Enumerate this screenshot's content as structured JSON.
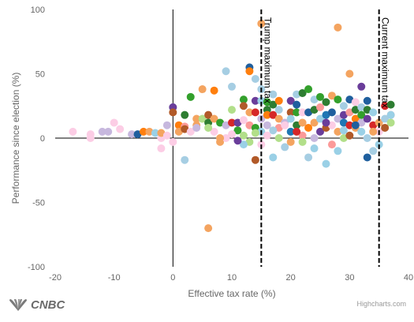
{
  "branding": {
    "logo_text": "CNBC",
    "credits": "Highcharts.com"
  },
  "colors": [
    "#9ad0e6",
    "#f4a460",
    "#2e7d32",
    "#6a3d9a",
    "#1f5f9e",
    "#ff7f0e",
    "#b15928",
    "#c7b8de",
    "#b2df8a",
    "#fb9a99",
    "#33a02c",
    "#1f77b4",
    "#d62728",
    "#fccde5",
    "#a6cee3",
    "#8b4513"
  ],
  "chart_data": {
    "type": "scatter",
    "title": "",
    "xlabel": "Effective tax rate (%)",
    "ylabel": "Performance since election (%)",
    "xlim": [
      -20,
      40
    ],
    "ylim": [
      -100,
      100
    ],
    "xticks": [
      -20,
      -10,
      0,
      10,
      20,
      30,
      40
    ],
    "yticks": [
      -100,
      -50,
      0,
      50,
      100
    ],
    "grid": false,
    "annotations": [
      {
        "label": "Trump maximum tax",
        "x": 15
      },
      {
        "label": "Current maximum tax",
        "x": 35
      }
    ],
    "points": [
      [
        -17,
        5,
        13
      ],
      [
        -14,
        0,
        13
      ],
      [
        -14,
        3,
        13
      ],
      [
        -12,
        5,
        7
      ],
      [
        -11,
        5,
        7
      ],
      [
        -10,
        12,
        13
      ],
      [
        -9,
        7,
        13
      ],
      [
        -7,
        3,
        7
      ],
      [
        -6,
        3,
        4
      ],
      [
        -5,
        5,
        5
      ],
      [
        -4,
        5,
        1
      ],
      [
        -3,
        4,
        0
      ],
      [
        -2,
        -8,
        13
      ],
      [
        -2,
        0,
        13
      ],
      [
        -2,
        4,
        1
      ],
      [
        -1,
        10,
        7
      ],
      [
        -1,
        2,
        13
      ],
      [
        0,
        24,
        0
      ],
      [
        0,
        24,
        3
      ],
      [
        0,
        20,
        6
      ],
      [
        0,
        -3,
        13
      ],
      [
        1,
        10,
        5
      ],
      [
        1,
        5,
        1
      ],
      [
        2,
        -17,
        14
      ],
      [
        2,
        18,
        2
      ],
      [
        2,
        9,
        9
      ],
      [
        2,
        7,
        6
      ],
      [
        3,
        32,
        10
      ],
      [
        3,
        5,
        13
      ],
      [
        4,
        10,
        1
      ],
      [
        4,
        15,
        1
      ],
      [
        4,
        8,
        7
      ],
      [
        5,
        38,
        1
      ],
      [
        5,
        15,
        8
      ],
      [
        6,
        -70,
        1
      ],
      [
        6,
        18,
        6
      ],
      [
        6,
        12,
        2
      ],
      [
        7,
        37,
        5
      ],
      [
        7,
        15,
        1
      ],
      [
        7,
        5,
        13
      ],
      [
        8,
        12,
        10
      ],
      [
        8,
        -3,
        1
      ],
      [
        9,
        52,
        14
      ],
      [
        9,
        10,
        7
      ],
      [
        9,
        0,
        13
      ],
      [
        10,
        40,
        14
      ],
      [
        10,
        22,
        8
      ],
      [
        10,
        12,
        12
      ],
      [
        11,
        12,
        3
      ],
      [
        11,
        6,
        10
      ],
      [
        12,
        30,
        10
      ],
      [
        12,
        14,
        13
      ],
      [
        12,
        2,
        8
      ],
      [
        13,
        55,
        4
      ],
      [
        13,
        52,
        5
      ],
      [
        13,
        20,
        1
      ],
      [
        13,
        10,
        9
      ],
      [
        13,
        -3,
        8
      ],
      [
        14,
        -17,
        6
      ],
      [
        14,
        46,
        14
      ],
      [
        14,
        29,
        3
      ],
      [
        14,
        20,
        12
      ],
      [
        14,
        8,
        10
      ],
      [
        15,
        89,
        1
      ],
      [
        15,
        38,
        14
      ],
      [
        15,
        29,
        0
      ],
      [
        15,
        15,
        7
      ],
      [
        15,
        5,
        0
      ],
      [
        16,
        28,
        10
      ],
      [
        16,
        22,
        2
      ],
      [
        16,
        18,
        5
      ],
      [
        16,
        10,
        7
      ],
      [
        16,
        2,
        13
      ],
      [
        17,
        34,
        14
      ],
      [
        17,
        26,
        2
      ],
      [
        17,
        18,
        12
      ],
      [
        17,
        -15,
        0
      ],
      [
        18,
        29,
        5
      ],
      [
        18,
        15,
        1
      ],
      [
        18,
        8,
        9
      ],
      [
        18,
        0,
        8
      ],
      [
        19,
        12,
        7
      ],
      [
        19,
        -7,
        14
      ],
      [
        20,
        29,
        3
      ],
      [
        20,
        20,
        6
      ],
      [
        20,
        15,
        0
      ],
      [
        20,
        5,
        11
      ],
      [
        20,
        -3,
        1
      ],
      [
        21,
        26,
        4
      ],
      [
        21,
        34,
        14
      ],
      [
        21,
        20,
        10
      ],
      [
        21,
        10,
        2
      ],
      [
        22,
        35,
        2
      ],
      [
        22,
        20,
        13
      ],
      [
        22,
        12,
        1
      ],
      [
        22,
        2,
        9
      ],
      [
        23,
        38,
        10
      ],
      [
        23,
        20,
        4
      ],
      [
        23,
        8,
        5
      ],
      [
        23,
        -15,
        14
      ],
      [
        24,
        30,
        14
      ],
      [
        24,
        22,
        2
      ],
      [
        24,
        12,
        1
      ],
      [
        24,
        0,
        7
      ],
      [
        25,
        32,
        10
      ],
      [
        25,
        24,
        9
      ],
      [
        25,
        15,
        0
      ],
      [
        25,
        5,
        3
      ],
      [
        26,
        28,
        2
      ],
      [
        26,
        18,
        11
      ],
      [
        26,
        8,
        6
      ],
      [
        26,
        -20,
        0
      ],
      [
        27,
        33,
        1
      ],
      [
        27,
        20,
        4
      ],
      [
        27,
        10,
        13
      ],
      [
        27,
        -5,
        9
      ],
      [
        28,
        86,
        1
      ],
      [
        28,
        30,
        10
      ],
      [
        28,
        15,
        7
      ],
      [
        28,
        5,
        1
      ],
      [
        28,
        -10,
        0
      ],
      [
        29,
        25,
        14
      ],
      [
        29,
        18,
        3
      ],
      [
        29,
        12,
        11
      ],
      [
        29,
        0,
        8
      ],
      [
        30,
        50,
        1
      ],
      [
        30,
        30,
        4
      ],
      [
        30,
        20,
        9
      ],
      [
        30,
        10,
        12
      ],
      [
        30,
        2,
        6
      ],
      [
        31,
        28,
        13
      ],
      [
        31,
        22,
        2
      ],
      [
        31,
        15,
        5
      ],
      [
        31,
        8,
        1
      ],
      [
        32,
        40,
        3
      ],
      [
        32,
        24,
        14
      ],
      [
        32,
        18,
        10
      ],
      [
        32,
        12,
        7
      ],
      [
        32,
        5,
        0
      ],
      [
        33,
        29,
        4
      ],
      [
        33,
        22,
        2
      ],
      [
        33,
        15,
        3
      ],
      [
        33,
        -15,
        4
      ],
      [
        34,
        20,
        0
      ],
      [
        34,
        10,
        12
      ],
      [
        34,
        -10,
        14
      ],
      [
        35,
        12,
        1
      ],
      [
        35,
        5,
        13
      ],
      [
        35,
        -5,
        0
      ],
      [
        36,
        25,
        12
      ],
      [
        36,
        15,
        14
      ],
      [
        37,
        26,
        2
      ],
      [
        37,
        18,
        9
      ],
      [
        37,
        12,
        8
      ],
      [
        37,
        18,
        0
      ],
      [
        36,
        8,
        6
      ],
      [
        33,
        0,
        14
      ],
      [
        34,
        5,
        1
      ],
      [
        24,
        -8,
        0
      ],
      [
        22,
        -3,
        8
      ],
      [
        19,
        10,
        13
      ],
      [
        17,
        6,
        14
      ],
      [
        14,
        4,
        8
      ],
      [
        12,
        -5,
        0
      ],
      [
        10,
        3,
        13
      ],
      [
        8,
        0,
        1
      ],
      [
        6,
        8,
        8
      ],
      [
        21,
        5,
        12
      ],
      [
        26,
        12,
        3
      ],
      [
        29,
        6,
        0
      ],
      [
        31,
        10,
        4
      ],
      [
        18,
        22,
        14
      ],
      [
        12,
        25,
        6
      ],
      [
        11,
        -2,
        3
      ],
      [
        15,
        -5,
        13
      ]
    ]
  }
}
